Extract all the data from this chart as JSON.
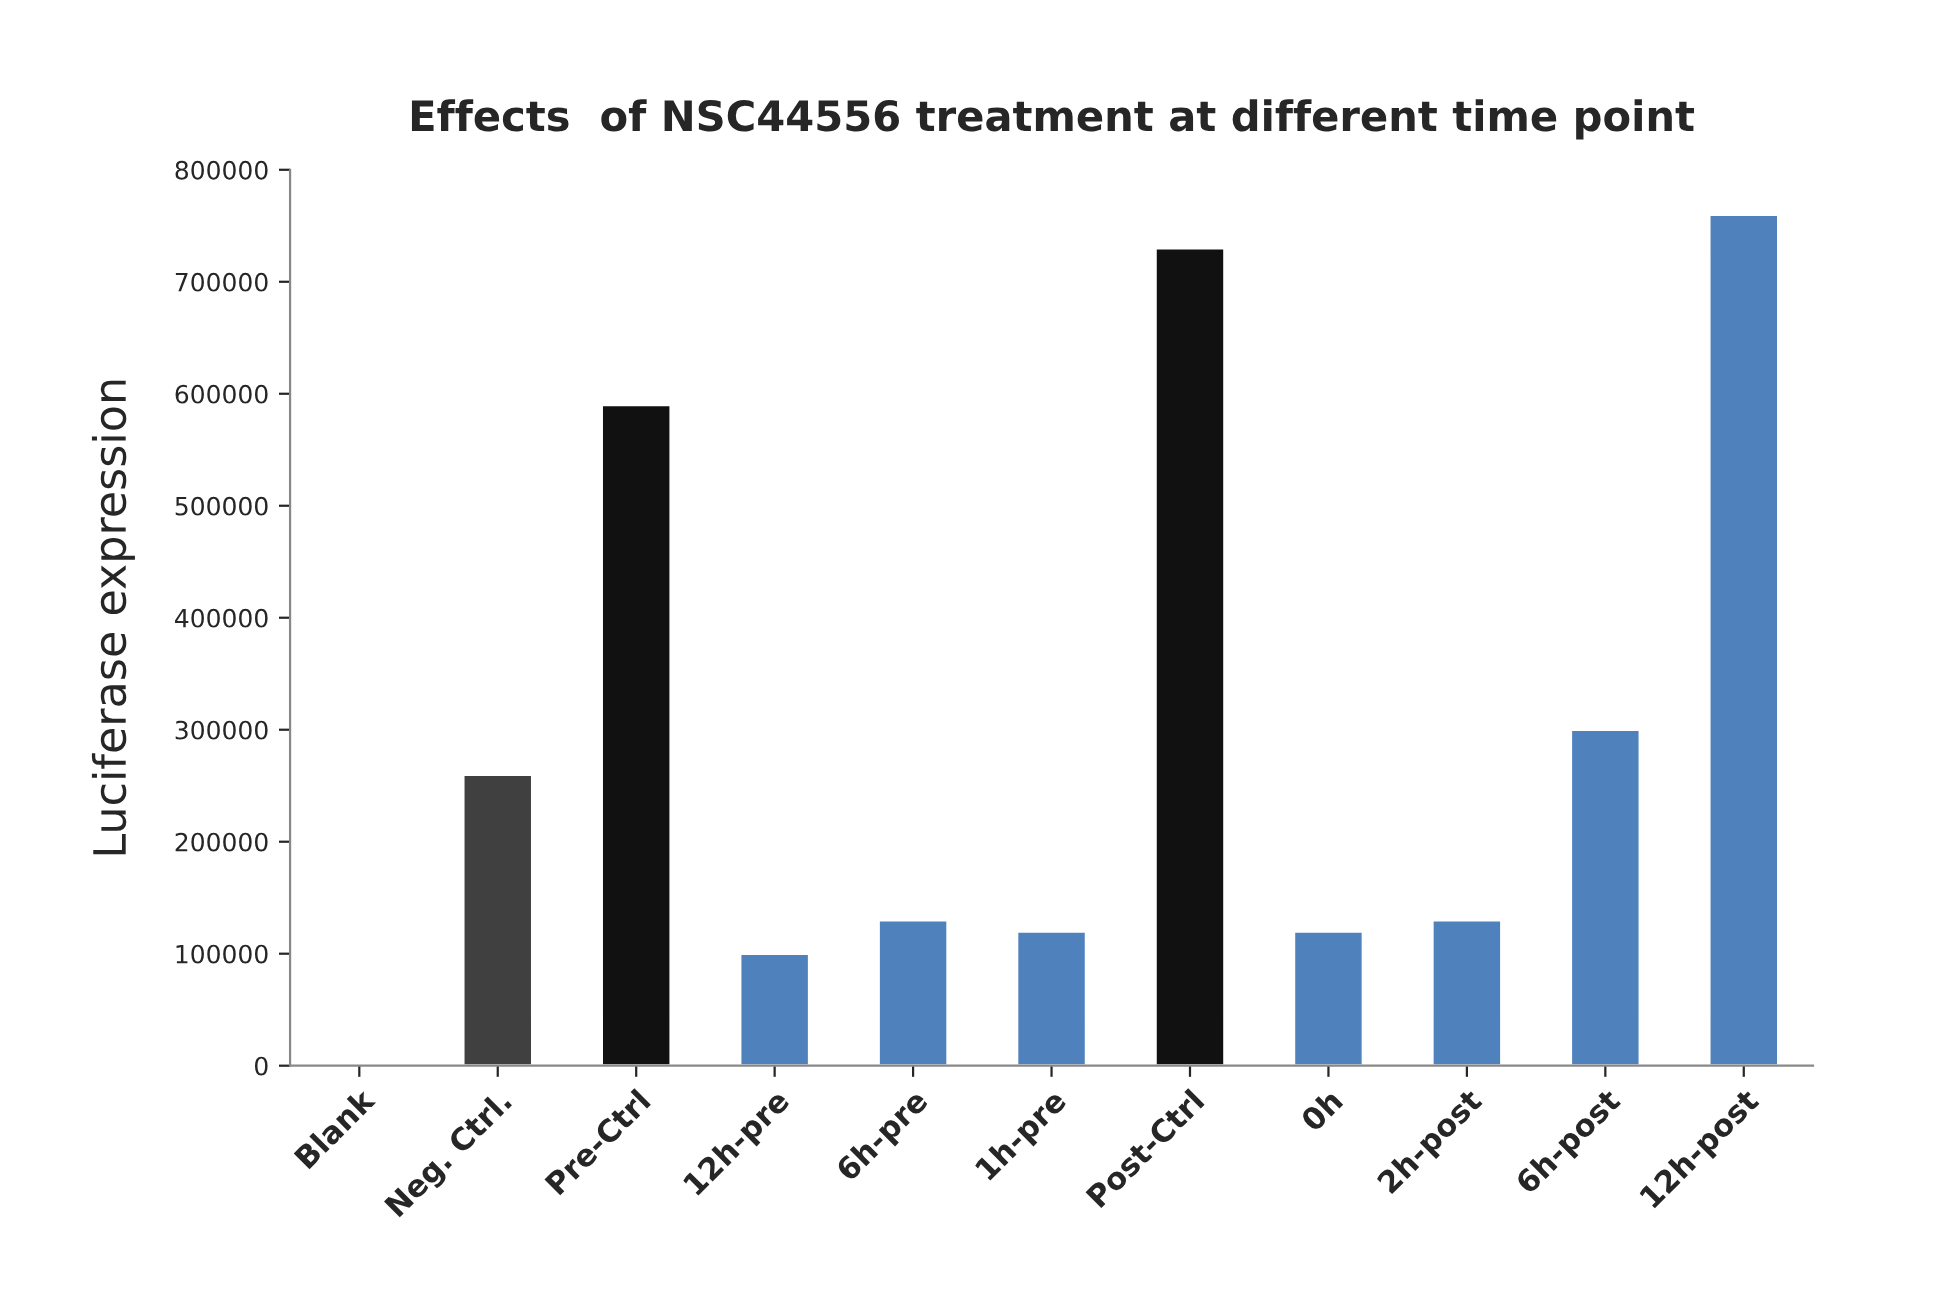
{
  "chart_data": {
    "type": "bar",
    "title": "Effects  of NSC44556 treatment at different time point",
    "ylabel": "Luciferase expression",
    "categories": [
      "Blank",
      "Neg. Ctrl.",
      "Pre-Ctrl",
      "12h-pre",
      "6h-pre",
      "1h-pre",
      "Post-Ctrl",
      "0h",
      "2h-post",
      "6h-post",
      "12h-post"
    ],
    "values": [
      null,
      260000,
      590000,
      100000,
      130000,
      120000,
      730000,
      120000,
      130000,
      300000,
      760000
    ],
    "colors": [
      null,
      "#404040",
      "#111111",
      "#4f81bd",
      "#4f81bd",
      "#4f81bd",
      "#111111",
      "#4f81bd",
      "#4f81bd",
      "#4f81bd",
      "#4f81bd"
    ],
    "ylim": [
      0,
      800000
    ],
    "yticks": [
      0,
      100000,
      200000,
      300000,
      400000,
      500000,
      600000,
      700000,
      800000
    ],
    "grid": false,
    "legend": false
  }
}
